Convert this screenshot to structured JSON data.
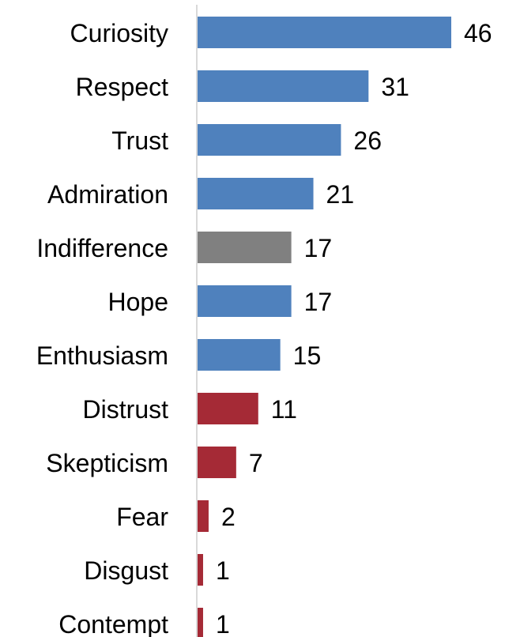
{
  "chart_data": {
    "type": "bar",
    "orientation": "horizontal",
    "title": "",
    "xlabel": "",
    "ylabel": "",
    "xlim": [
      0,
      46
    ],
    "grid": false,
    "legend": "none",
    "categories": [
      "Curiosity",
      "Respect",
      "Trust",
      "Admiration",
      "Indifference",
      "Hope",
      "Enthusiasm",
      "Distrust",
      "Skepticism",
      "Fear",
      "Disgust",
      "Contempt"
    ],
    "values": [
      46,
      31,
      26,
      21,
      17,
      17,
      15,
      11,
      7,
      2,
      1,
      1
    ],
    "value_labels": [
      "46",
      "31",
      "26",
      "21",
      "17",
      "17",
      "15",
      "11",
      "7",
      "2",
      "1",
      "1"
    ],
    "bar_colors": [
      "#4f81bd",
      "#4f81bd",
      "#4f81bd",
      "#4f81bd",
      "#808080",
      "#4f81bd",
      "#4f81bd",
      "#a52a36",
      "#a52a36",
      "#a52a36",
      "#a52a36",
      "#a52a36"
    ],
    "axis_color": "#d9d9d9"
  }
}
